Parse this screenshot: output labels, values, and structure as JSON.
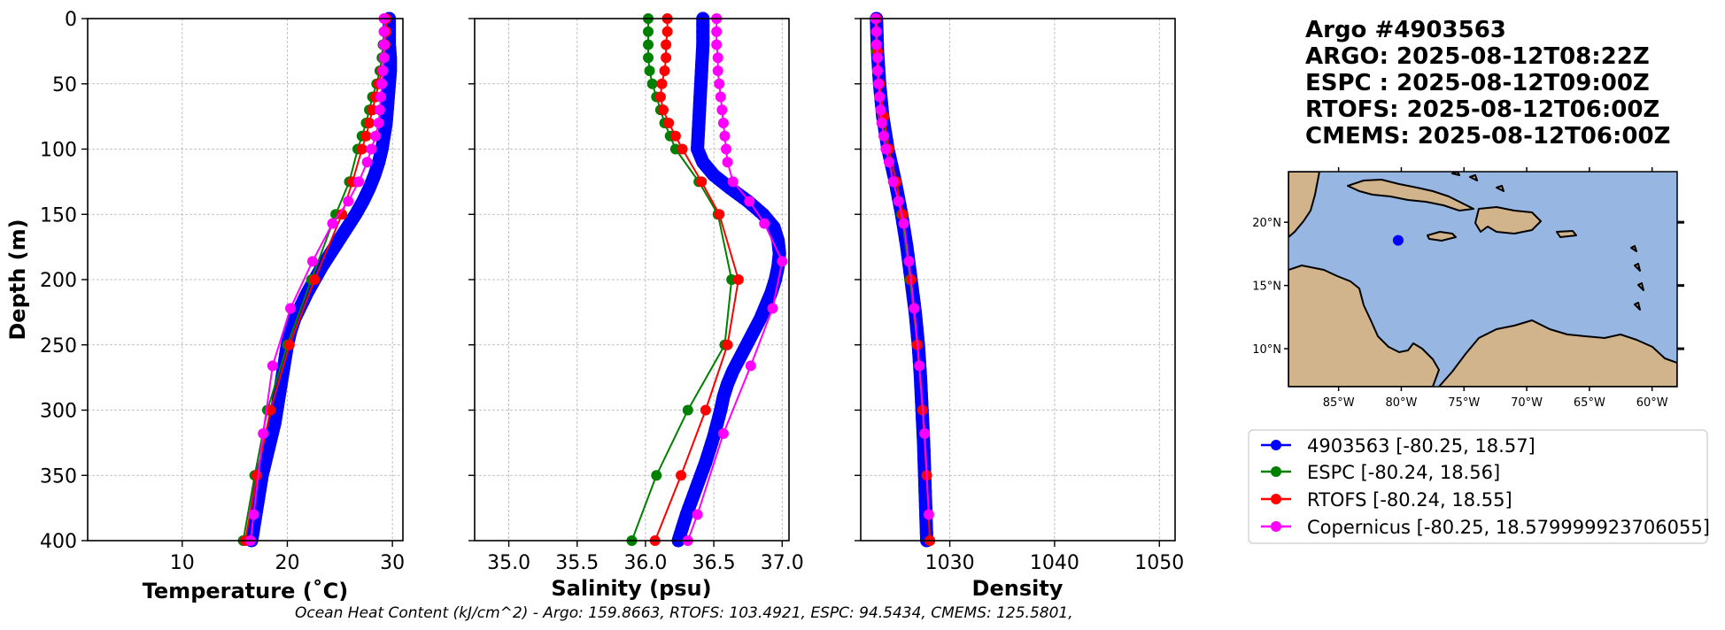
{
  "header": {
    "lines": [
      "Argo #4903563",
      "ARGO: 2025-08-12T08:22Z",
      "ESPC : 2025-08-12T09:00Z",
      "RTOFS: 2025-08-12T06:00Z",
      "CMEMS: 2025-08-12T06:00Z"
    ]
  },
  "footer": {
    "text": "Ocean Heat Content (kJ/cm^2) - Argo: 159.8663,  RTOFS: 103.4921,  ESPC: 94.5434,  CMEMS: 125.5801,"
  },
  "legend": [
    {
      "label": "4903563 [-80.25, 18.57]",
      "color": "#0000ff"
    },
    {
      "label": "ESPC [-80.24, 18.56]",
      "color": "#008000"
    },
    {
      "label": "RTOFS [-80.24, 18.55]",
      "color": "#ff0000"
    },
    {
      "label": "Copernicus [-80.25, 18.579999923706055]",
      "color": "#ff00ff"
    }
  ],
  "map": {
    "lon_ticks": [
      "85°W",
      "80°W",
      "75°W",
      "70°W",
      "65°W",
      "60°W"
    ],
    "lat_ticks": [
      "20°N",
      "15°N",
      "10°N"
    ],
    "float_lon": -80.25,
    "float_lat": 18.57,
    "extent": {
      "lon": [
        -89,
        -58
      ],
      "lat": [
        7,
        24
      ]
    },
    "ocean_color": "#97b6e1",
    "land_color": "#d2b48c",
    "marker_color": "#0000ff"
  },
  "chart_data": [
    {
      "type": "line",
      "xlabel": "Temperature (˚C)",
      "ylabel": "Depth (m)",
      "xlim": [
        1,
        31
      ],
      "ylim": [
        400,
        0
      ],
      "xticks": [
        10,
        20,
        30
      ],
      "yticks": [
        0,
        50,
        100,
        150,
        200,
        250,
        300,
        350,
        400
      ],
      "grid": true,
      "series": [
        {
          "name": "4903563 [-80.25, 18.57]",
          "color": "#0000ff",
          "thick": true,
          "depth": [
            0,
            10,
            20,
            30,
            40,
            50,
            60,
            70,
            80,
            90,
            100,
            110,
            120,
            130,
            140,
            150,
            160,
            170,
            180,
            190,
            200,
            210,
            220,
            230,
            240,
            250,
            260,
            270,
            280,
            290,
            300,
            310,
            320,
            330,
            340,
            350,
            360,
            370,
            380,
            390,
            400
          ],
          "values": [
            29.7,
            29.7,
            29.7,
            29.8,
            29.8,
            29.7,
            29.6,
            29.5,
            29.4,
            29.2,
            29.0,
            28.7,
            28.3,
            27.8,
            27.2,
            26.5,
            25.7,
            24.9,
            24.1,
            23.3,
            22.6,
            21.9,
            21.3,
            20.7,
            20.3,
            20.0,
            19.8,
            19.6,
            19.4,
            19.2,
            19.0,
            18.8,
            18.5,
            18.2,
            17.9,
            17.6,
            17.4,
            17.2,
            17.0,
            16.8,
            16.6
          ]
        },
        {
          "name": "ESPC [-80.24, 18.56]",
          "color": "#008000",
          "thick": false,
          "depth": [
            0,
            10,
            20,
            30,
            40,
            50,
            60,
            70,
            80,
            90,
            100,
            125,
            150,
            200,
            250,
            300,
            350,
            400
          ],
          "values": [
            29.3,
            29.2,
            29.1,
            29.0,
            28.8,
            28.5,
            28.1,
            27.8,
            27.5,
            27.1,
            26.7,
            25.9,
            24.6,
            22.3,
            20.0,
            18.1,
            16.9,
            15.8
          ]
        },
        {
          "name": "RTOFS [-80.24, 18.55]",
          "color": "#ff0000",
          "thick": false,
          "depth": [
            0,
            10,
            20,
            30,
            40,
            50,
            60,
            70,
            80,
            90,
            100,
            125,
            150,
            200,
            250,
            300,
            350,
            400
          ],
          "values": [
            29.4,
            29.4,
            29.3,
            29.2,
            29.0,
            28.7,
            28.4,
            28.1,
            27.8,
            27.5,
            27.1,
            26.2,
            25.2,
            22.6,
            20.2,
            18.4,
            17.1,
            16.0
          ]
        },
        {
          "name": "Copernicus [-80.25, 18.579999923706055]",
          "color": "#ff00ff",
          "thick": false,
          "depth": [
            0,
            10,
            20,
            30,
            40,
            50,
            60,
            70,
            80,
            90,
            100,
            110,
            125,
            140,
            157,
            186,
            222,
            266,
            318,
            380,
            400
          ],
          "values": [
            29.2,
            29.2,
            29.2,
            29.2,
            29.1,
            29.0,
            28.9,
            28.8,
            28.7,
            28.4,
            28.0,
            27.6,
            26.8,
            25.8,
            24.3,
            22.4,
            20.3,
            18.6,
            17.7,
            16.8,
            16.5
          ]
        }
      ]
    },
    {
      "type": "line",
      "xlabel": "Salinity (psu)",
      "ylabel": "",
      "xlim": [
        34.75,
        37.05
      ],
      "ylim": [
        400,
        0
      ],
      "xticks": [
        35.0,
        35.5,
        36.0,
        36.5,
        37.0
      ],
      "yticks": [
        0,
        50,
        100,
        150,
        200,
        250,
        300,
        350,
        400
      ],
      "grid": true,
      "series": [
        {
          "name": "4903563 [-80.25, 18.57]",
          "color": "#0000ff",
          "thick": true,
          "depth": [
            0,
            20,
            40,
            60,
            80,
            100,
            110,
            120,
            130,
            140,
            150,
            160,
            170,
            180,
            190,
            200,
            210,
            220,
            230,
            240,
            250,
            260,
            270,
            280,
            290,
            300,
            320,
            340,
            360,
            380,
            400
          ],
          "values": [
            36.42,
            36.42,
            36.41,
            36.4,
            36.39,
            36.38,
            36.42,
            36.5,
            36.62,
            36.75,
            36.86,
            36.94,
            36.97,
            36.98,
            36.97,
            36.95,
            36.92,
            36.88,
            36.84,
            36.79,
            36.74,
            36.69,
            36.64,
            36.6,
            36.57,
            36.55,
            36.5,
            36.44,
            36.37,
            36.3,
            36.24
          ]
        },
        {
          "name": "ESPC [-80.24, 18.56]",
          "color": "#008000",
          "thick": false,
          "depth": [
            0,
            10,
            20,
            30,
            40,
            50,
            60,
            70,
            80,
            90,
            100,
            125,
            150,
            200,
            250,
            300,
            350,
            400
          ],
          "values": [
            36.02,
            36.02,
            36.02,
            36.02,
            36.03,
            36.05,
            36.08,
            36.11,
            36.14,
            36.18,
            36.22,
            36.39,
            36.53,
            36.63,
            36.58,
            36.31,
            36.08,
            35.9
          ]
        },
        {
          "name": "RTOFS [-80.24, 18.55]",
          "color": "#ff0000",
          "thick": false,
          "depth": [
            0,
            10,
            20,
            30,
            40,
            50,
            60,
            70,
            80,
            90,
            100,
            125,
            150,
            200,
            250,
            300,
            350,
            400
          ],
          "values": [
            36.16,
            36.16,
            36.15,
            36.15,
            36.14,
            36.12,
            36.11,
            36.13,
            36.17,
            36.22,
            36.27,
            36.41,
            36.54,
            36.68,
            36.6,
            36.44,
            36.26,
            36.07
          ]
        },
        {
          "name": "Copernicus [-80.25, 18.579999923706055]",
          "color": "#ff00ff",
          "thick": false,
          "depth": [
            0,
            10,
            20,
            30,
            40,
            50,
            60,
            70,
            80,
            90,
            100,
            110,
            125,
            140,
            157,
            186,
            222,
            266,
            318,
            380,
            400
          ],
          "values": [
            36.52,
            36.52,
            36.52,
            36.53,
            36.53,
            36.54,
            36.55,
            36.56,
            36.57,
            36.58,
            36.59,
            36.6,
            36.64,
            36.76,
            36.87,
            37.0,
            36.93,
            36.77,
            36.57,
            36.38,
            36.31
          ]
        }
      ]
    },
    {
      "type": "line",
      "xlabel": "Density",
      "ylabel": "",
      "xlim": [
        1021.5,
        1051.5
      ],
      "ylim": [
        400,
        0
      ],
      "xticks": [
        1030,
        1040,
        1050
      ],
      "yticks": [
        0,
        50,
        100,
        150,
        200,
        250,
        300,
        350,
        400
      ],
      "grid": true,
      "series": [
        {
          "name": "4903563 [-80.25, 18.57]",
          "color": "#0000ff",
          "thick": true,
          "depth": [
            0,
            25,
            50,
            75,
            100,
            125,
            150,
            175,
            200,
            225,
            250,
            275,
            300,
            325,
            350,
            375,
            400
          ],
          "values": [
            1023.0,
            1023.1,
            1023.3,
            1023.6,
            1024.1,
            1024.8,
            1025.4,
            1025.9,
            1026.3,
            1026.7,
            1027.0,
            1027.2,
            1027.35,
            1027.5,
            1027.6,
            1027.7,
            1027.8
          ]
        },
        {
          "name": "ESPC [-80.24, 18.56]",
          "color": "#008000",
          "thick": false,
          "depth": [
            0,
            25,
            50,
            75,
            100,
            125,
            150,
            200,
            250,
            300,
            350,
            400
          ],
          "values": [
            1022.9,
            1023.0,
            1023.2,
            1023.6,
            1024.1,
            1024.9,
            1025.4,
            1026.2,
            1026.9,
            1027.4,
            1027.8,
            1028.1
          ]
        },
        {
          "name": "RTOFS [-80.24, 18.55]",
          "color": "#ff0000",
          "thick": false,
          "depth": [
            0,
            25,
            50,
            75,
            100,
            125,
            150,
            200,
            250,
            300,
            350,
            400
          ],
          "values": [
            1023.0,
            1023.1,
            1023.3,
            1023.7,
            1024.2,
            1024.9,
            1025.5,
            1026.3,
            1026.9,
            1027.4,
            1027.8,
            1028.1
          ]
        },
        {
          "name": "Copernicus [-80.25, 18.579999923706055]",
          "color": "#ff00ff",
          "thick": false,
          "depth": [
            0,
            10,
            20,
            30,
            40,
            50,
            60,
            70,
            80,
            90,
            100,
            110,
            125,
            140,
            157,
            186,
            222,
            266,
            318,
            380
          ],
          "values": [
            1022.9,
            1023.0,
            1023.0,
            1023.1,
            1023.1,
            1023.2,
            1023.3,
            1023.4,
            1023.5,
            1023.7,
            1023.9,
            1024.2,
            1024.6,
            1025.1,
            1025.6,
            1026.1,
            1026.6,
            1027.1,
            1027.6,
            1028.0
          ]
        }
      ]
    }
  ]
}
